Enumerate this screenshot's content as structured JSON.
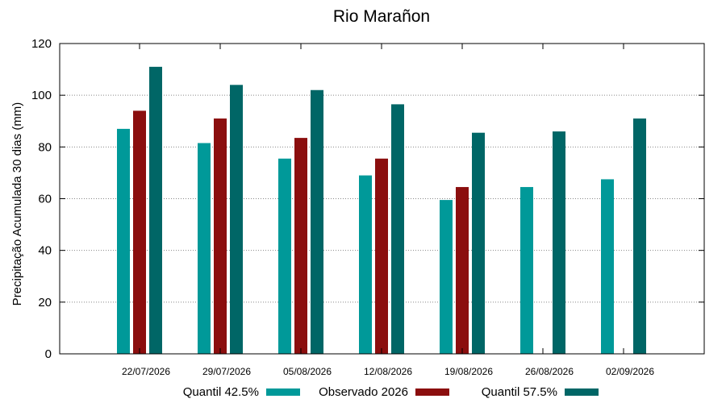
{
  "chart_data": {
    "type": "bar",
    "title": "Rio Marañon",
    "ylabel": "Precipitação Acumulada 30 dias (mm)",
    "xlabel": "",
    "ylim": [
      0,
      120
    ],
    "yticks": [
      0,
      20,
      40,
      60,
      80,
      100,
      120
    ],
    "grid": true,
    "legend_position": "bottom",
    "categories": [
      "22/07/2026",
      "29/07/2026",
      "05/08/2026",
      "12/08/2026",
      "19/08/2026",
      "26/08/2026",
      "02/09/2026"
    ],
    "series": [
      {
        "name": "Quantil 42.5%",
        "color": "#009999",
        "values": [
          87,
          81.5,
          75.5,
          69,
          59.5,
          64.5,
          67.5
        ]
      },
      {
        "name": "Observado 2026",
        "color": "#8b0e0e",
        "values": [
          94,
          91,
          83.5,
          75.5,
          64.5,
          null,
          null
        ]
      },
      {
        "name": "Quantil 57.5%",
        "color": "#006666",
        "values": [
          111,
          104,
          102,
          96.5,
          85.5,
          86,
          91
        ]
      }
    ]
  }
}
